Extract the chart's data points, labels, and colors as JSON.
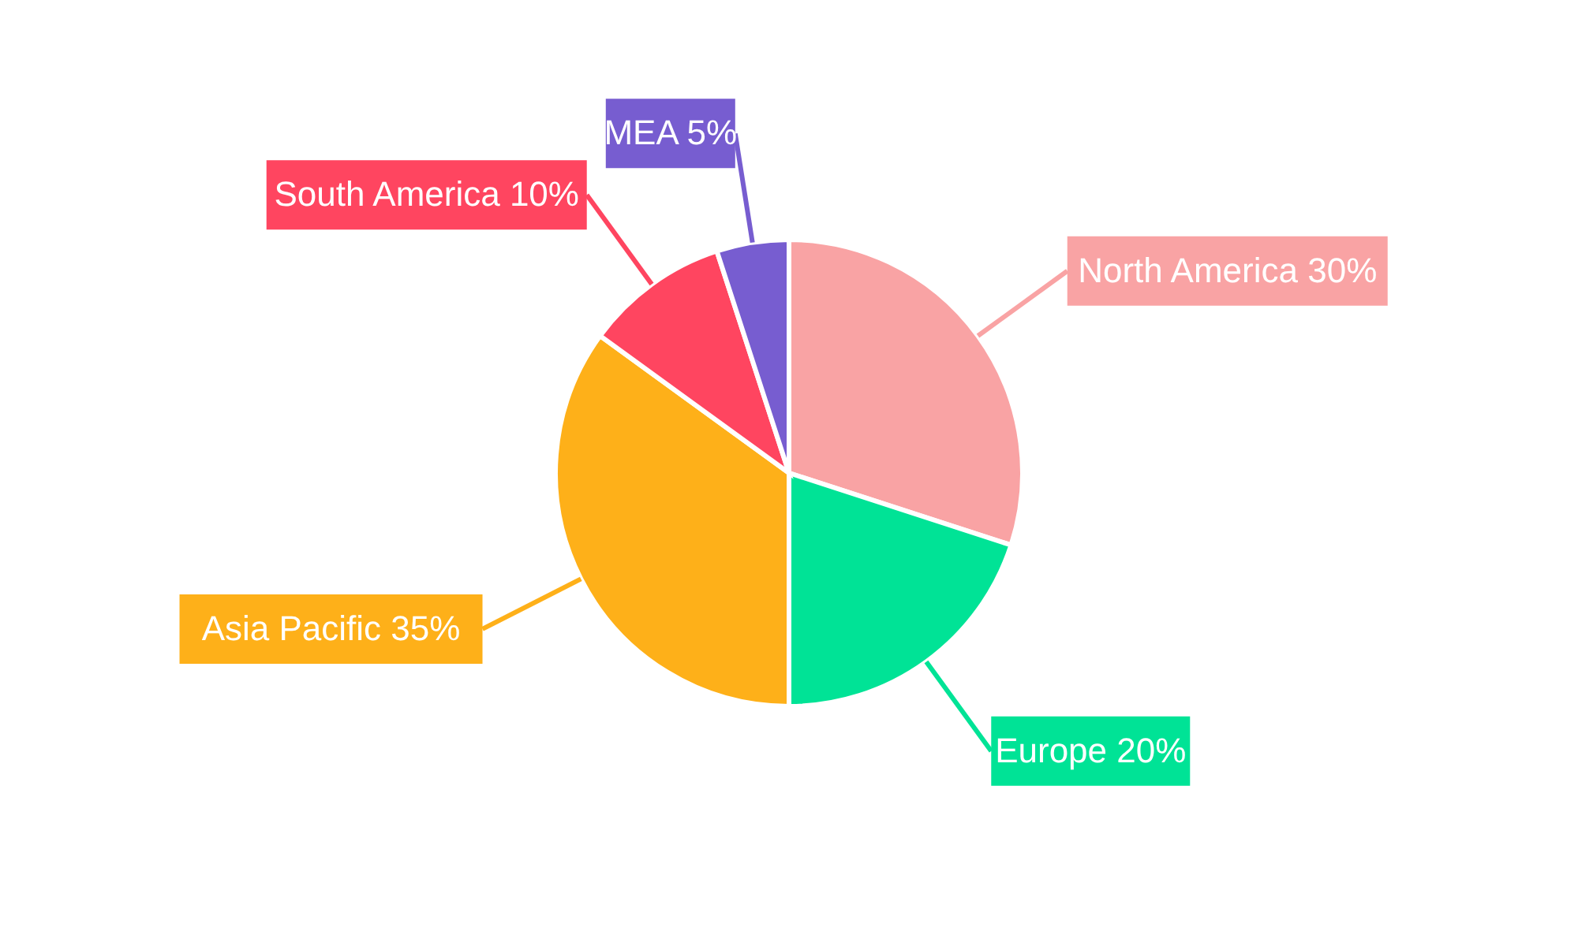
{
  "chart_data": {
    "type": "pie",
    "categories": [
      "North America",
      "Europe",
      "Asia Pacific",
      "South America",
      "MEA"
    ],
    "values": [
      30,
      20,
      35,
      10,
      5
    ],
    "value_labels": [
      "30%",
      "20%",
      "35%",
      "10%",
      "5%"
    ],
    "colors": [
      "#f9a3a4",
      "#00e396",
      "#feb019",
      "#ff4560",
      "#775dd0"
    ]
  }
}
